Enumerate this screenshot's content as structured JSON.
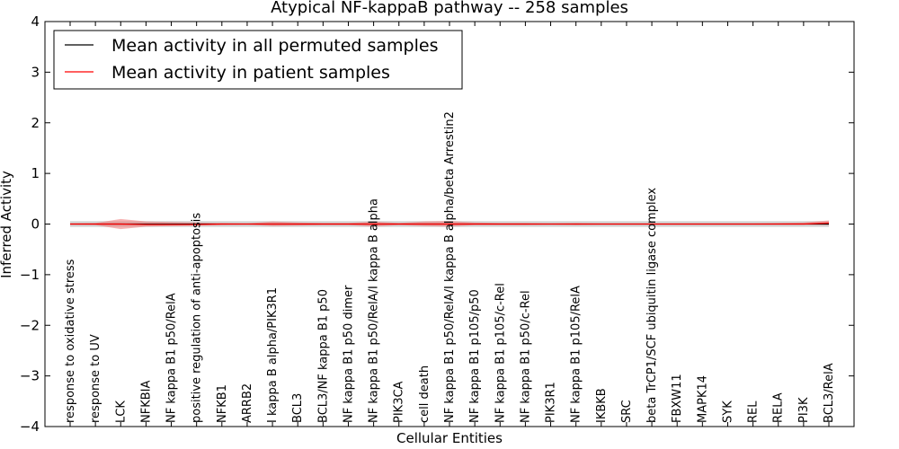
{
  "chart_data": {
    "type": "line",
    "title": "Atypical NF-kappaB pathway -- 258 samples",
    "xlabel": "Cellular Entities",
    "ylabel": "Inferred Activity",
    "ylim": [
      -4,
      4
    ],
    "yticks": [
      -4,
      -3,
      -2,
      -1,
      0,
      1,
      2,
      3,
      4
    ],
    "ytick_labels": [
      "−4",
      "−3",
      "−2",
      "−1",
      "0",
      "1",
      "2",
      "3",
      "4"
    ],
    "legend_position": "top-left",
    "categories": [
      "response to oxidative stress",
      "response to UV",
      "LCK",
      "NFKBIA",
      "NF kappa B1 p50/RelA",
      "positive regulation of anti-apoptosis",
      "NFKB1",
      "ARRB2",
      "I kappa B alpha/PIK3R1",
      "BCL3",
      "BCL3/NF kappa B1 p50",
      "NF kappa B1 p50 dimer",
      "NF kappa B1 p50/RelA/I kappa B alpha",
      "PIK3CA",
      "cell death",
      "NF kappa B1 p50/RelA/I kappa B alpha/beta Arrestin2",
      "NF kappa B1 p105/p50",
      "NF kappa B1 p105/c-Rel",
      "NF kappa B1 p50/c-Rel",
      "PIK3R1",
      "NF kappa B1 p105/RelA",
      "IKBKB",
      "SRC",
      "beta TrCP1/SCF ubiquitin ligase complex",
      "FBXW11",
      "MAPK14",
      "SYK",
      "REL",
      "RELA",
      "PI3K",
      "BCL3/RelA"
    ],
    "series": [
      {
        "name": "Mean activity in all permuted samples",
        "color": "#000000",
        "values": [
          0,
          0,
          0,
          0,
          0,
          0,
          0,
          0,
          0,
          0,
          0,
          0,
          0,
          0,
          0,
          0,
          0,
          0,
          0,
          0,
          0,
          0,
          0,
          0,
          0,
          0,
          0,
          0,
          0,
          0,
          0
        ],
        "band_lower": [
          -0.06,
          -0.06,
          -0.06,
          -0.06,
          -0.06,
          -0.06,
          -0.06,
          -0.06,
          -0.06,
          -0.06,
          -0.06,
          -0.06,
          -0.06,
          -0.06,
          -0.06,
          -0.06,
          -0.06,
          -0.06,
          -0.06,
          -0.06,
          -0.06,
          -0.06,
          -0.06,
          -0.06,
          -0.06,
          -0.06,
          -0.06,
          -0.06,
          -0.06,
          -0.06,
          -0.06
        ],
        "band_upper": [
          0.06,
          0.06,
          0.06,
          0.06,
          0.06,
          0.06,
          0.06,
          0.06,
          0.06,
          0.06,
          0.06,
          0.06,
          0.06,
          0.06,
          0.06,
          0.06,
          0.06,
          0.06,
          0.06,
          0.06,
          0.06,
          0.06,
          0.06,
          0.06,
          0.06,
          0.06,
          0.06,
          0.06,
          0.06,
          0.06,
          0.06
        ],
        "band_color": "#bbbbbb"
      },
      {
        "name": "Mean activity in patient samples",
        "color": "#ff0000",
        "values": [
          0,
          0,
          0,
          -0.01,
          -0.01,
          -0.01,
          0,
          0,
          0,
          0,
          0,
          0,
          0,
          0,
          0,
          0,
          0,
          0,
          0,
          0,
          0,
          0,
          0,
          0,
          0,
          0,
          0,
          0,
          0,
          0,
          0.02
        ],
        "band_lower": [
          -0.01,
          -0.02,
          -0.1,
          -0.05,
          -0.04,
          -0.03,
          -0.02,
          -0.01,
          -0.04,
          -0.03,
          -0.02,
          -0.02,
          -0.05,
          -0.02,
          -0.04,
          -0.05,
          -0.02,
          -0.02,
          -0.02,
          -0.01,
          -0.02,
          -0.01,
          -0.01,
          -0.01,
          -0.01,
          -0.01,
          -0.01,
          -0.01,
          -0.01,
          -0.01,
          -0.02
        ],
        "band_upper": [
          0.01,
          0.02,
          0.1,
          0.05,
          0.04,
          0.03,
          0.02,
          0.01,
          0.05,
          0.03,
          0.02,
          0.02,
          0.05,
          0.02,
          0.05,
          0.06,
          0.03,
          0.02,
          0.02,
          0.01,
          0.02,
          0.01,
          0.01,
          0.01,
          0.01,
          0.01,
          0.01,
          0.01,
          0.02,
          0.03,
          0.07
        ],
        "band_color": "#f08080"
      }
    ]
  }
}
